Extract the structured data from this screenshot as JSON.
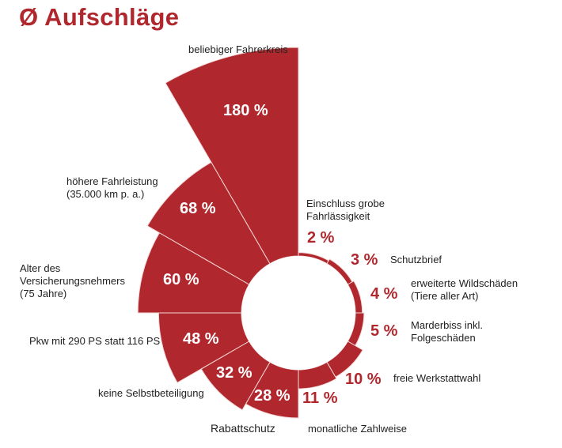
{
  "title": "Ø Aufschläge",
  "chart_data": {
    "type": "polar-area",
    "title": "Ø Aufschläge",
    "unit": "%",
    "color": "#b0282e",
    "order": "clockwise from top",
    "categories": [
      "Einschluss grobe Fahrlässigkeit",
      "Schutzbrief",
      "erweiterte Wildschäden (Tiere aller Art)",
      "Marderbiss inkl. Folgeschäden",
      "freie Werkstattwahl",
      "monatliche Zahlweise",
      "Rabattschutz",
      "keine Selbstbeteiligung",
      "Pkw mit 290 PS statt 116 PS",
      "Alter des Versicherungsnehmers (75 Jahre)",
      "höhere Fahrleistung (35.000 km p. a.)",
      "beliebiger Fahrerkreis"
    ],
    "values": [
      2,
      3,
      4,
      5,
      10,
      11,
      28,
      32,
      48,
      60,
      68,
      180
    ],
    "value_labels": [
      "2 %",
      "3 %",
      "4 %",
      "5 %",
      "10 %",
      "11 %",
      "28 %",
      "32 %",
      "48 %",
      "60 %",
      "68 %",
      "180 %"
    ],
    "label_lines": [
      [
        "Einschluss grobe",
        "Fahrlässigkeit"
      ],
      [
        "Schutzbrief"
      ],
      [
        "erweiterte Wildschäden",
        "(Tiere aller Art)"
      ],
      [
        "Marderbiss inkl.",
        "Folgeschäden"
      ],
      [
        "freie Werkstattwahl"
      ],
      [
        "monatliche Zahlweise"
      ],
      [
        "Rabattschutz"
      ],
      [
        "keine Selbstbeteiligung"
      ],
      [
        "Pkw mit 290 PS statt 116 PS"
      ],
      [
        "Alter des",
        "Versicherungsnehmers",
        "(75 Jahre)"
      ],
      [
        "höhere Fahrleistung",
        "(35.000 km p. a.)"
      ],
      [
        "beliebiger Fahrerkreis"
      ]
    ]
  }
}
